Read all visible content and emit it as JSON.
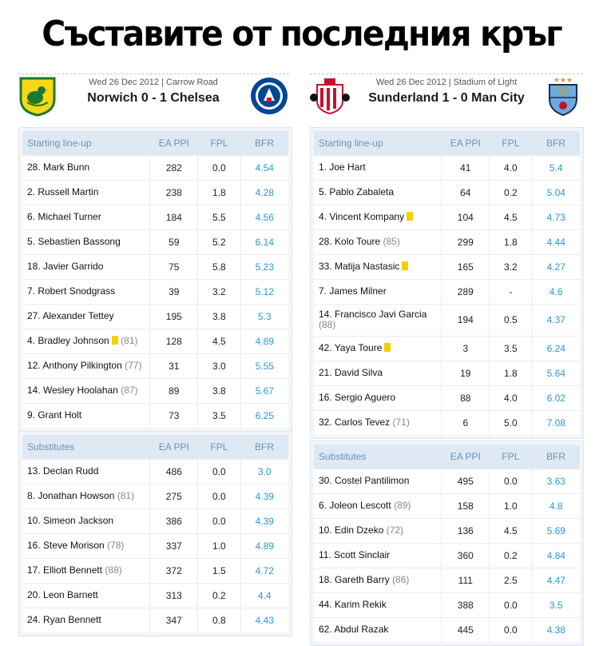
{
  "page_title": "Съставите от последния кръг",
  "columns": {
    "name": "Starting line-up",
    "subs": "Substitutes",
    "ea": "EA PPI",
    "fpl": "FPL",
    "bfr": "BFR"
  },
  "left_match": {
    "meta": "Wed 26 Dec 2012 | Carrow Road",
    "score": "Norwich 0 - 1 Chelsea",
    "home_crest": "norwich-crest-icon",
    "away_crest": "chelsea-crest-icon",
    "starting": [
      {
        "name": "28. Mark Bunn",
        "sub": "",
        "card": false,
        "ea": "282",
        "fpl": "0.0",
        "bfr": "4.54"
      },
      {
        "name": "2.  Russell Martin",
        "sub": "",
        "card": false,
        "ea": "238",
        "fpl": "1.8",
        "bfr": "4.28"
      },
      {
        "name": "6.  Michael Turner",
        "sub": "",
        "card": false,
        "ea": "184",
        "fpl": "5.5",
        "bfr": "4.56"
      },
      {
        "name": "5.  Sebastien Bassong",
        "sub": "",
        "card": false,
        "ea": "59",
        "fpl": "5.2",
        "bfr": "6.14"
      },
      {
        "name": "18. Javier Garrido",
        "sub": "",
        "card": false,
        "ea": "75",
        "fpl": "5.8",
        "bfr": "5.23"
      },
      {
        "name": "7.  Robert Snodgrass",
        "sub": "",
        "card": false,
        "ea": "39",
        "fpl": "3.2",
        "bfr": "5.12"
      },
      {
        "name": "27. Alexander Tettey",
        "sub": "",
        "card": false,
        "ea": "195",
        "fpl": "3.8",
        "bfr": "5.3"
      },
      {
        "name": "4.  Bradley Johnson",
        "sub": "(81)",
        "card": true,
        "ea": "128",
        "fpl": "4.5",
        "bfr": "4.89"
      },
      {
        "name": "12. Anthony Pilkington",
        "sub": "(77)",
        "card": false,
        "ea": "31",
        "fpl": "3.0",
        "bfr": "5.55"
      },
      {
        "name": "14. Wesley Hoolahan",
        "sub": "(87)",
        "card": false,
        "ea": "89",
        "fpl": "3.8",
        "bfr": "5.67"
      },
      {
        "name": "9.  Grant Holt",
        "sub": "",
        "card": false,
        "ea": "73",
        "fpl": "3.5",
        "bfr": "6.25"
      }
    ],
    "subs": [
      {
        "name": "13. Declan Rudd",
        "sub": "",
        "card": false,
        "ea": "486",
        "fpl": "0.0",
        "bfr": "3.0"
      },
      {
        "name": "8.  Jonathan Howson",
        "sub": "(81)",
        "card": false,
        "ea": "275",
        "fpl": "0.0",
        "bfr": "4.39"
      },
      {
        "name": "10. Simeon Jackson",
        "sub": "",
        "card": false,
        "ea": "386",
        "fpl": "0.0",
        "bfr": "4.39"
      },
      {
        "name": "16. Steve Morison",
        "sub": "(78)",
        "card": false,
        "ea": "337",
        "fpl": "1.0",
        "bfr": "4.89"
      },
      {
        "name": "17. Elliott Bennett",
        "sub": "(88)",
        "card": false,
        "ea": "372",
        "fpl": "1.5",
        "bfr": "4.72"
      },
      {
        "name": "20. Leon Barnett",
        "sub": "",
        "card": false,
        "ea": "313",
        "fpl": "0.2",
        "bfr": "4.4"
      },
      {
        "name": "24. Ryan Bennett",
        "sub": "",
        "card": false,
        "ea": "347",
        "fpl": "0.8",
        "bfr": "4.43"
      }
    ]
  },
  "right_match": {
    "meta": "Wed 26 Dec 2012 | Stadium of Light",
    "score": "Sunderland 1 - 0 Man City",
    "home_crest": "sunderland-crest-icon",
    "away_crest": "man-city-crest-icon",
    "starting": [
      {
        "name": "1.  Joe Hart",
        "sub": "",
        "card": false,
        "ea": "41",
        "fpl": "4.0",
        "bfr": "5.4"
      },
      {
        "name": "5.  Pablo Zabaleta",
        "sub": "",
        "card": false,
        "ea": "64",
        "fpl": "0.2",
        "bfr": "5.04"
      },
      {
        "name": "4.  Vincent Kompany",
        "sub": "",
        "card": true,
        "ea": "104",
        "fpl": "4.5",
        "bfr": "4.73"
      },
      {
        "name": "28. Kolo Toure",
        "sub": "(85)",
        "card": false,
        "ea": "299",
        "fpl": "1.8",
        "bfr": "4.44"
      },
      {
        "name": "33. Matija Nastasic",
        "sub": "",
        "card": true,
        "ea": "165",
        "fpl": "3.2",
        "bfr": "4.27"
      },
      {
        "name": "7.  James Milner",
        "sub": "",
        "card": false,
        "ea": "289",
        "fpl": "-",
        "bfr": "4.6"
      },
      {
        "name": "14. Francisco Javi Garcia",
        "sub": "(88)",
        "card": false,
        "tall": true,
        "ea": "194",
        "fpl": "0.5",
        "bfr": "4.37"
      },
      {
        "name": "42. Yaya Toure",
        "sub": "",
        "card": true,
        "ea": "3",
        "fpl": "3.5",
        "bfr": "6.24"
      },
      {
        "name": "21. David Silva",
        "sub": "",
        "card": false,
        "ea": "19",
        "fpl": "1.8",
        "bfr": "5.64"
      },
      {
        "name": "16. Sergio Aguero",
        "sub": "",
        "card": false,
        "ea": "88",
        "fpl": "4.0",
        "bfr": "6.02"
      },
      {
        "name": "32. Carlos Tevez",
        "sub": "(71)",
        "card": false,
        "ea": "6",
        "fpl": "5.0",
        "bfr": "7.08"
      }
    ],
    "subs": [
      {
        "name": "30. Costel Pantilimon",
        "sub": "",
        "card": false,
        "ea": "495",
        "fpl": "0.0",
        "bfr": "3.63"
      },
      {
        "name": "6.  Joleon Lescott",
        "sub": "(89)",
        "card": false,
        "ea": "158",
        "fpl": "1.0",
        "bfr": "4.8"
      },
      {
        "name": "10. Edin Dzeko",
        "sub": "(72)",
        "card": false,
        "ea": "136",
        "fpl": "4.5",
        "bfr": "5.69"
      },
      {
        "name": "11. Scott Sinclair",
        "sub": "",
        "card": false,
        "ea": "360",
        "fpl": "0.2",
        "bfr": "4.84"
      },
      {
        "name": "18. Gareth Barry",
        "sub": "(86)",
        "card": false,
        "ea": "111",
        "fpl": "2.5",
        "bfr": "4.47"
      },
      {
        "name": "44. Karim Rekik",
        "sub": "",
        "card": false,
        "ea": "388",
        "fpl": "0.0",
        "bfr": "3.5"
      },
      {
        "name": "62. Abdul Razak",
        "sub": "",
        "card": false,
        "ea": "445",
        "fpl": "0.0",
        "bfr": "4.38"
      }
    ]
  }
}
